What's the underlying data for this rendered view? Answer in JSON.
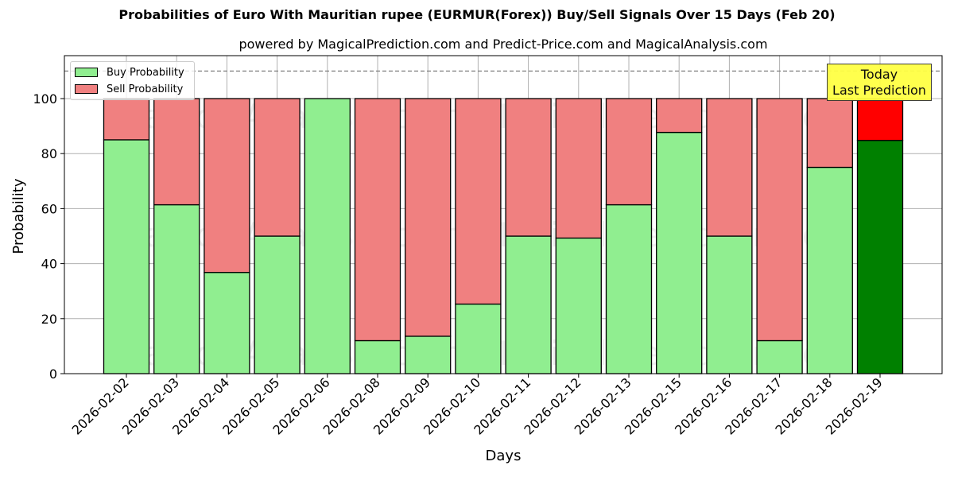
{
  "chart_data": {
    "type": "bar",
    "stacked": true,
    "title": "Probabilities of Euro With Mauritian rupee (EURMUR(Forex)) Buy/Sell Signals Over 15 Days (Feb 20)",
    "subtitle": "powered by MagicalPrediction.com and Predict-Price.com and MagicalAnalysis.com",
    "xlabel": "Days",
    "ylabel": "Probability",
    "ylim": [
      0,
      115
    ],
    "yticks": [
      0,
      20,
      40,
      60,
      80,
      100
    ],
    "grid": true,
    "legend_position": "upper left",
    "reference_line": {
      "y": 110,
      "style": "dashed",
      "color": "#808080"
    },
    "categories": [
      "2026-02-02",
      "2026-02-03",
      "2026-02-04",
      "2026-02-05",
      "2026-02-06",
      "2026-02-08",
      "2026-02-09",
      "2026-02-10",
      "2026-02-11",
      "2026-02-12",
      "2026-02-13",
      "2026-02-15",
      "2026-02-16",
      "2026-02-17",
      "2026-02-18",
      "2026-02-19"
    ],
    "series": [
      {
        "name": "Buy Probability",
        "color": "#90ee90",
        "values": [
          85,
          61.4,
          36.8,
          50,
          100,
          12,
          13.6,
          25.3,
          50,
          49.3,
          61.4,
          87.7,
          50,
          12,
          75,
          84.8
        ]
      },
      {
        "name": "Sell Probability",
        "color": "#f08080",
        "values": [
          15,
          38.6,
          63.2,
          50,
          0,
          88,
          86.4,
          74.7,
          50,
          50.7,
          38.6,
          12.3,
          50,
          88,
          25,
          15.2
        ]
      }
    ],
    "highlight": {
      "index": 15,
      "buy_color": "#008000",
      "sell_color": "#ff0000"
    },
    "annotation": {
      "text_line1": "Today",
      "text_line2": "Last Prediction",
      "background": "#ffff44"
    },
    "watermarks": [
      "MagicalAnalysis.com",
      "MagicalPrediction.com"
    ]
  },
  "legend": {
    "buy_label": "Buy Probability",
    "sell_label": "Sell Probability"
  }
}
